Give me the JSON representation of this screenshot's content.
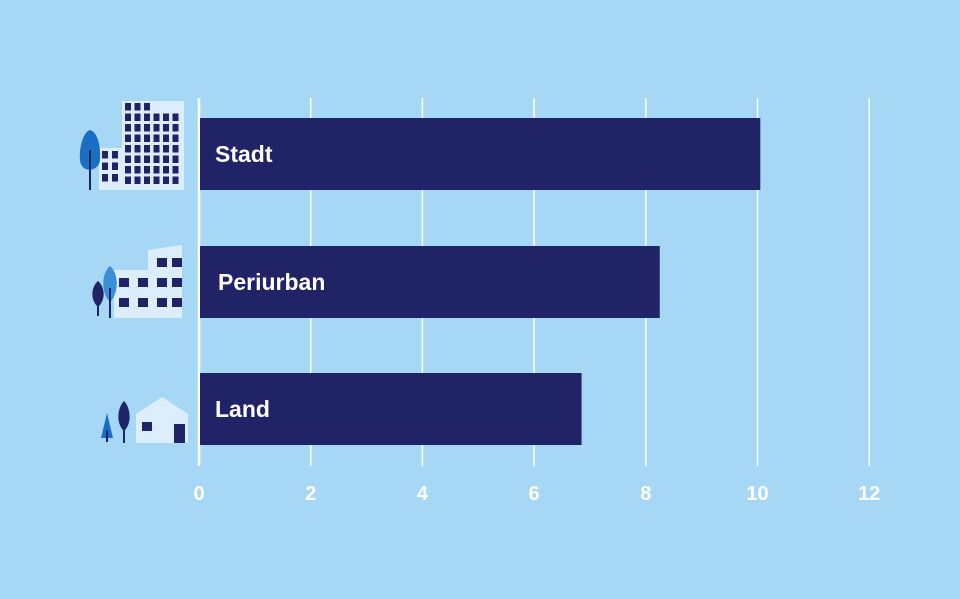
{
  "colors": {
    "background": "#a6d7f5",
    "bar": "#202366",
    "grid": "#ffffff",
    "icon_dark": "#202366",
    "icon_mid": "#1a6fc4",
    "icon_light": "#dcedfb",
    "icon_tree_light": "#3b8fd6"
  },
  "icons": [
    "city-buildings-icon",
    "periurban-buildings-icon",
    "rural-house-icon"
  ],
  "chart_data": {
    "type": "bar",
    "orientation": "horizontal",
    "categories": [
      "Stadt",
      "Periurban",
      "Land"
    ],
    "values": [
      10.05,
      8.25,
      6.85
    ],
    "xlim": [
      0,
      12
    ],
    "xticks": [
      "0",
      "2",
      "4",
      "6",
      "8",
      "10",
      "12"
    ],
    "title": "",
    "xlabel": "",
    "ylabel": "",
    "grid": "vertical"
  }
}
